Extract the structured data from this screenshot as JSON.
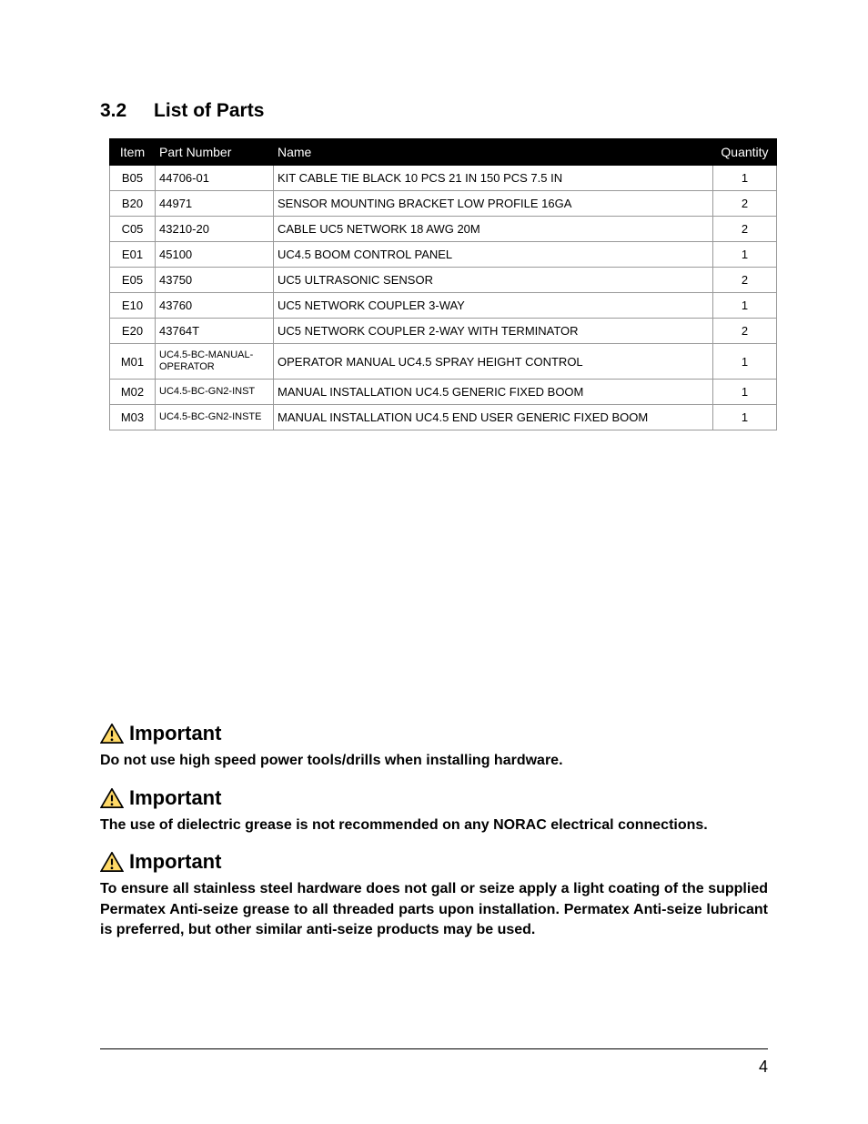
{
  "section": {
    "number": "3.2",
    "title": "List of Parts"
  },
  "table": {
    "columns": [
      "Item",
      "Part Number",
      "Name",
      "Quantity"
    ],
    "rows": [
      {
        "item": "B05",
        "pn": "44706-01",
        "name": "KIT CABLE TIE BLACK 10 PCS 21 IN  150 PCS 7.5 IN",
        "qty": "1",
        "pnSmall": false
      },
      {
        "item": "B20",
        "pn": "44971",
        "name": "SENSOR MOUNTING BRACKET LOW PROFILE 16GA",
        "qty": "2",
        "pnSmall": false
      },
      {
        "item": "C05",
        "pn": "43210-20",
        "name": "CABLE UC5 NETWORK 18 AWG 20M",
        "qty": "2",
        "pnSmall": false
      },
      {
        "item": "E01",
        "pn": "45100",
        "name": "UC4.5 BOOM CONTROL PANEL",
        "qty": "1",
        "pnSmall": false
      },
      {
        "item": "E05",
        "pn": "43750",
        "name": "UC5 ULTRASONIC SENSOR",
        "qty": "2",
        "pnSmall": false
      },
      {
        "item": "E10",
        "pn": "43760",
        "name": "UC5 NETWORK COUPLER 3-WAY",
        "qty": "1",
        "pnSmall": false
      },
      {
        "item": "E20",
        "pn": "43764T",
        "name": "UC5 NETWORK COUPLER 2-WAY WITH TERMINATOR",
        "qty": "2",
        "pnSmall": false
      },
      {
        "item": "M01",
        "pn": "UC4.5-BC-MANUAL-OPERATOR",
        "name": "OPERATOR MANUAL UC4.5 SPRAY HEIGHT CONTROL",
        "qty": "1",
        "pnSmall": true
      },
      {
        "item": "M02",
        "pn": "UC4.5-BC-GN2-INST",
        "name": "MANUAL INSTALLATION UC4.5 GENERIC FIXED BOOM",
        "qty": "1",
        "pnSmall": true
      },
      {
        "item": "M03",
        "pn": "UC4.5-BC-GN2-INSTE",
        "name": "MANUAL INSTALLATION UC4.5 END USER GENERIC FIXED BOOM",
        "qty": "1",
        "pnSmall": true
      }
    ]
  },
  "notices": [
    {
      "label": "Important",
      "text": "Do not use high speed power tools/drills when installing hardware."
    },
    {
      "label": "Important",
      "text": "The use of dielectric grease is not recommended on any NORAC electrical connections."
    },
    {
      "label": "Important",
      "text": "To ensure all stainless steel hardware does not gall or seize apply a light coating of the supplied Permatex Anti-seize grease to all threaded parts upon installation. Permatex Anti-seize lubricant is preferred, but other similar anti-seize products may be used."
    }
  ],
  "pageNumber": "4",
  "style": {
    "headerBg": "#000000",
    "headerColor": "#ffffff",
    "borderColor": "#999999",
    "warningIconStroke": "#000000",
    "warningIconFill": "#ffd966"
  }
}
